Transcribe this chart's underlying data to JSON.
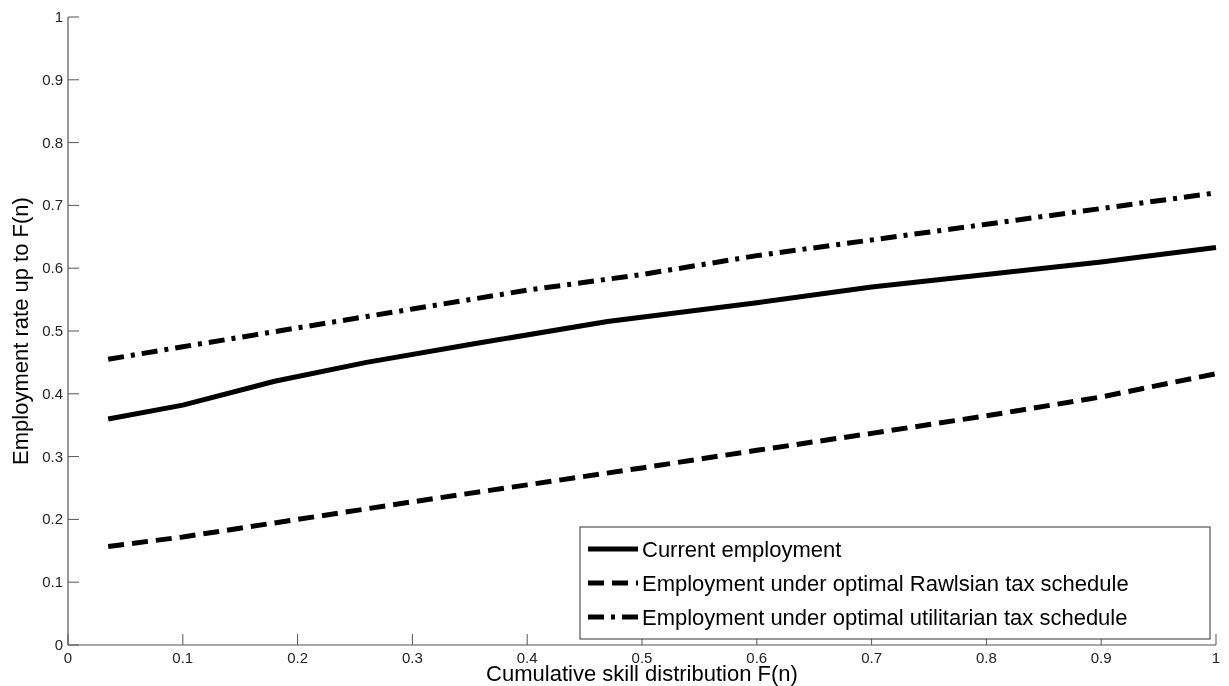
{
  "chart_data": {
    "type": "line",
    "xlabel": "Cumulative skill distribution F(n)",
    "ylabel": "Employment rate up to F(n)",
    "xlim": [
      0,
      1
    ],
    "ylim": [
      0,
      1
    ],
    "xticks": [
      0,
      0.1,
      0.2,
      0.3,
      0.4,
      0.5,
      0.6,
      0.7,
      0.8,
      0.9,
      1
    ],
    "yticks": [
      0,
      0.1,
      0.2,
      0.3,
      0.4,
      0.5,
      0.6,
      0.7,
      0.8,
      0.9,
      1
    ],
    "grid": false,
    "legend": "bottom right",
    "series": [
      {
        "name": "Current employment",
        "color": "#000000",
        "line_style": "solid",
        "x": [
          0.035,
          0.1,
          0.18,
          0.26,
          0.355,
          0.47,
          0.6,
          0.7,
          0.8,
          0.9,
          1.0
        ],
        "values": [
          0.36,
          0.382,
          0.42,
          0.45,
          0.48,
          0.515,
          0.545,
          0.57,
          0.59,
          0.61,
          0.633
        ]
      },
      {
        "name": "Employment under optimal Rawlsian tax schedule",
        "color": "#000000",
        "line_style": "dashed",
        "x": [
          0.035,
          0.1,
          0.2,
          0.3,
          0.4,
          0.5,
          0.6,
          0.7,
          0.8,
          0.9,
          1.0
        ],
        "values": [
          0.157,
          0.172,
          0.2,
          0.228,
          0.255,
          0.282,
          0.31,
          0.337,
          0.365,
          0.395,
          0.432
        ]
      },
      {
        "name": "Employment under optimal utilitarian tax schedule",
        "color": "#000000",
        "line_style": "dashdot",
        "x": [
          0.035,
          0.1,
          0.2,
          0.3,
          0.4,
          0.5,
          0.6,
          0.7,
          0.8,
          0.9,
          1.0
        ],
        "values": [
          0.455,
          0.475,
          0.505,
          0.535,
          0.565,
          0.59,
          0.62,
          0.645,
          0.67,
          0.695,
          0.72
        ]
      }
    ]
  }
}
